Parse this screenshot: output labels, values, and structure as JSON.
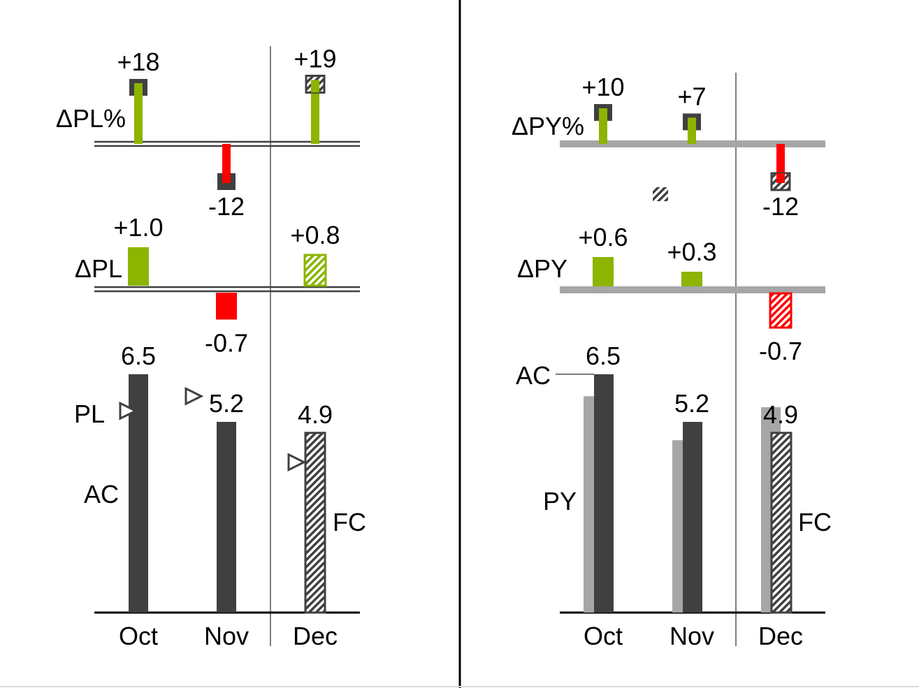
{
  "colors": {
    "actual": "#404040",
    "previous_year": "#a6a6a6",
    "positive": "#8cb400",
    "negative": "#ff0000",
    "reference_line": "#a6a6a6",
    "divider": "#808080"
  },
  "chart_data": [
    {
      "type": "bar",
      "panel": "left",
      "categories": [
        "Oct",
        "Nov",
        "Dec"
      ],
      "forecast_from": "Dec",
      "pct_variance": {
        "label": "ΔPL%",
        "values": [
          18,
          -12,
          19
        ],
        "value_labels": [
          "+18",
          "-12",
          "+19"
        ]
      },
      "abs_variance": {
        "label": "ΔPL",
        "values": [
          1.0,
          -0.7,
          0.8
        ],
        "value_labels": [
          "+1.0",
          "-0.7",
          "+0.8"
        ]
      },
      "series": [
        {
          "name": "AC",
          "values": [
            6.5,
            5.2,
            null
          ],
          "value_labels": [
            "6.5",
            "5.2",
            ""
          ]
        },
        {
          "name": "FC",
          "values": [
            null,
            null,
            4.9
          ],
          "value_labels": [
            "",
            "",
            "4.9"
          ]
        },
        {
          "name": "PL",
          "values": [
            5.5,
            5.9,
            4.1
          ]
        }
      ]
    },
    {
      "type": "bar",
      "panel": "right",
      "categories": [
        "Oct",
        "Nov",
        "Dec"
      ],
      "forecast_from": "Dec",
      "pct_variance": {
        "label": "ΔPY%",
        "values": [
          10,
          7,
          -12
        ],
        "value_labels": [
          "+10",
          "+7",
          "-12"
        ]
      },
      "abs_variance": {
        "label": "ΔPY",
        "values": [
          0.6,
          0.3,
          -0.7
        ],
        "value_labels": [
          "+0.6",
          "+0.3",
          "-0.7"
        ]
      },
      "series": [
        {
          "name": "AC",
          "values": [
            6.5,
            5.2,
            null
          ],
          "value_labels": [
            "6.5",
            "5.2",
            ""
          ]
        },
        {
          "name": "FC",
          "values": [
            null,
            null,
            4.9
          ],
          "value_labels": [
            "",
            "",
            "4.9"
          ]
        },
        {
          "name": "PY",
          "values": [
            5.9,
            4.7,
            5.6
          ]
        }
      ]
    }
  ]
}
